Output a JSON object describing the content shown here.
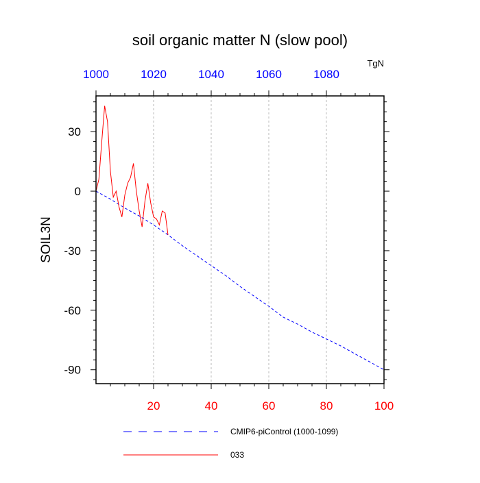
{
  "chart_data": {
    "type": "line",
    "title": "soil organic matter N (slow pool)",
    "ylabel": "SOIL3N",
    "units": "TgN",
    "xlim": [
      0,
      100
    ],
    "ylim": [
      -97,
      48
    ],
    "x_ticks": [
      20,
      40,
      60,
      80,
      100
    ],
    "x_tick_labels": [
      "20",
      "40",
      "60",
      "80",
      "100"
    ],
    "x_tick_color": "#ff0000",
    "top_axis_ticks": [
      0,
      20,
      40,
      60,
      80
    ],
    "top_tick_labels": [
      "1000",
      "1020",
      "1040",
      "1060",
      "1080"
    ],
    "top_tick_color": "#0000ff",
    "y_ticks": [
      30,
      0,
      -30,
      -60,
      -90
    ],
    "y_tick_labels": [
      "30",
      "0",
      "-30",
      "-60",
      "-90"
    ],
    "grid": "vertical dashed at major x ticks",
    "legend_placement": "below-plot",
    "series": [
      {
        "name": "CMIP6-piControl (1000-1099)",
        "color": "#0000ff",
        "style": "dashed",
        "x": [
          0,
          5,
          10,
          15,
          20,
          25,
          30,
          35,
          40,
          45,
          50,
          55,
          60,
          65,
          70,
          75,
          80,
          85,
          90,
          95,
          100
        ],
        "y": [
          0,
          -4,
          -8.5,
          -12.5,
          -17,
          -22,
          -27.5,
          -32.5,
          -37.5,
          -42.5,
          -48,
          -53,
          -58,
          -63.5,
          -67,
          -71,
          -74.5,
          -78,
          -82,
          -86,
          -90
        ]
      },
      {
        "name": "033",
        "color": "#ff0000",
        "style": "solid",
        "x": [
          0,
          1,
          2,
          3,
          4,
          5,
          6,
          7,
          8,
          9,
          10,
          11,
          12,
          13,
          14,
          15,
          16,
          17,
          18,
          19,
          20,
          21,
          22,
          23,
          24,
          25,
          26
        ],
        "y": [
          0,
          6,
          25,
          43,
          35,
          10,
          -3,
          0,
          -8,
          -13,
          -2,
          4,
          7,
          14,
          0,
          -10,
          -18,
          -5,
          4,
          -6,
          -13,
          -14,
          -17,
          -10,
          -11,
          -22,
          null
        ]
      }
    ]
  }
}
